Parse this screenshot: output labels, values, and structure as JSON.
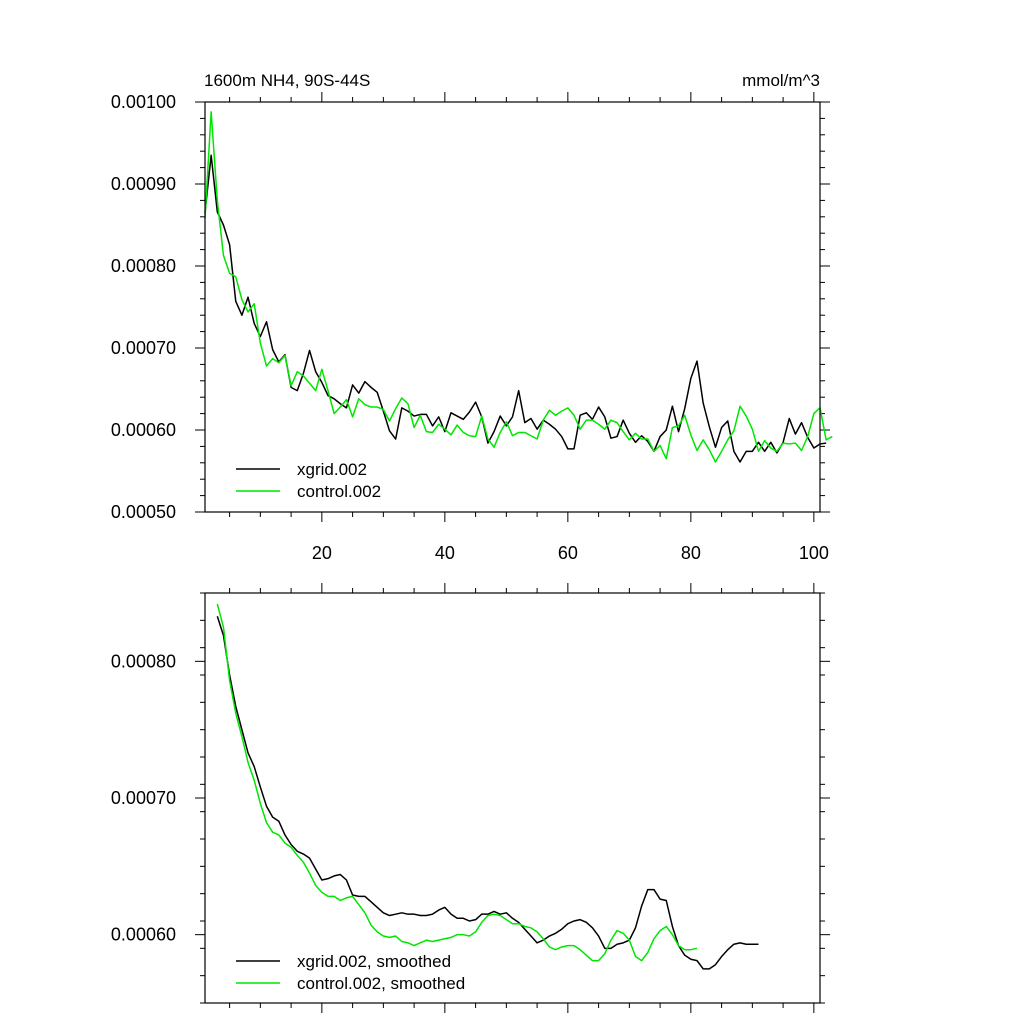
{
  "chart_data": [
    {
      "type": "line",
      "title_left": "1600m NH4, 90S-44S",
      "title_right": "mmol/m^3",
      "xlim": [
        1,
        101
      ],
      "ylim": [
        0.0005,
        0.001
      ],
      "x_ticks": [
        20,
        40,
        60,
        80,
        100
      ],
      "x_tick_labels": [
        "20",
        "40",
        "60",
        "80",
        "100"
      ],
      "y_ticks": [
        0.0005,
        0.0006,
        0.0007,
        0.0008,
        0.0009,
        0.001
      ],
      "y_tick_labels": [
        "0.00050",
        "0.00060",
        "0.00070",
        "0.00080",
        "0.00090",
        "0.00100"
      ],
      "legend_position": "bottom-left",
      "grid": false,
      "series": [
        {
          "name": "xgrid.002",
          "color": "#000000",
          "x_start": 1,
          "values": [
            0.000865,
            0.000935,
            0.000866,
            0.00085,
            0.000826,
            0.000757,
            0.00074,
            0.000762,
            0.00073,
            0.000714,
            0.000732,
            0.000698,
            0.000683,
            0.000692,
            0.000652,
            0.000648,
            0.000669,
            0.000697,
            0.000671,
            0.000658,
            0.000642,
            0.000638,
            0.000632,
            0.000627,
            0.000655,
            0.000645,
            0.000659,
            0.000652,
            0.000646,
            0.000623,
            0.000599,
            0.000589,
            0.000627,
            0.000623,
            0.000617,
            0.000619,
            0.000619,
            0.000605,
            0.000616,
            0.000598,
            0.000621,
            0.000617,
            0.000613,
            0.000622,
            0.000634,
            0.000616,
            0.000584,
            0.000598,
            0.000617,
            0.000605,
            0.000616,
            0.000648,
            0.000609,
            0.000614,
            0.000601,
            0.000612,
            0.000607,
            0.000601,
            0.000592,
            0.000577,
            0.000577,
            0.000618,
            0.000621,
            0.000613,
            0.000628,
            0.000616,
            0.00059,
            0.000592,
            0.000612,
            0.000596,
            0.000585,
            0.000593,
            0.000586,
            0.000574,
            0.000592,
            0.0006,
            0.000629,
            0.000598,
            0.000626,
            0.000663,
            0.000684,
            0.000633,
            0.000604,
            0.000579,
            0.000603,
            0.000611,
            0.000574,
            0.000561,
            0.000574,
            0.000574,
            0.000585,
            0.000574,
            0.000585,
            0.000572,
            0.000585,
            0.000614,
            0.000595,
            0.000609,
            0.000591,
            0.000578,
            0.000583,
            0.000584
          ]
        },
        {
          "name": "control.002",
          "color": "#00e600",
          "x_start": 1,
          "values": [
            0.000858,
            0.000988,
            0.00088,
            0.000813,
            0.000791,
            0.000787,
            0.000759,
            0.000744,
            0.000754,
            0.000706,
            0.000678,
            0.000687,
            0.000682,
            0.000691,
            0.000654,
            0.000671,
            0.000666,
            0.000657,
            0.000648,
            0.000674,
            0.000648,
            0.00062,
            0.000628,
            0.000637,
            0.000616,
            0.000638,
            0.000631,
            0.000628,
            0.000628,
            0.000625,
            0.000611,
            0.000626,
            0.000639,
            0.000632,
            0.000603,
            0.000618,
            0.000598,
            0.000597,
            0.000607,
            0.000601,
            0.000594,
            0.000606,
            0.000597,
            0.000593,
            0.000592,
            0.000617,
            0.000589,
            0.000579,
            0.000597,
            0.00061,
            0.000593,
            0.000597,
            0.000597,
            0.000593,
            0.000589,
            0.000612,
            0.000624,
            0.000618,
            0.000623,
            0.000627,
            0.000618,
            0.000601,
            0.000612,
            0.000612,
            0.000607,
            0.000601,
            0.000612,
            0.000609,
            0.000598,
            0.000588,
            0.000596,
            0.000589,
            0.000589,
            0.000574,
            0.000581,
            0.000565,
            0.000603,
            0.000605,
            0.000618,
            0.000594,
            0.000575,
            0.000588,
            0.000576,
            0.000561,
            0.000574,
            0.000588,
            0.000599,
            0.000629,
            0.000617,
            0.000601,
            0.000574,
            0.000587,
            0.000578,
            0.000574,
            0.000584,
            0.000583,
            0.000584,
            0.000575,
            0.000592,
            0.00062,
            0.000627,
            0.000588,
            0.000592
          ]
        }
      ]
    },
    {
      "type": "line",
      "xlim": [
        1,
        101
      ],
      "ylim": [
        0.00055,
        0.00085
      ],
      "x_ticks": [
        20,
        40,
        60,
        80,
        100
      ],
      "y_ticks": [
        0.0006,
        0.0007,
        0.0008
      ],
      "y_tick_labels": [
        "0.00060",
        "0.00070",
        "0.00080"
      ],
      "legend_position": "bottom-left",
      "grid": false,
      "series": [
        {
          "name": "xgrid.002, smoothed",
          "color": "#000000",
          "x_start": 3,
          "values": [
            0.000833,
            0.000819,
            0.00079,
            0.000767,
            0.00075,
            0.000733,
            0.000723,
            0.000708,
            0.000694,
            0.000686,
            0.000683,
            0.000673,
            0.000666,
            0.000661,
            0.000659,
            0.000656,
            0.000648,
            0.00064,
            0.000641,
            0.000643,
            0.000644,
            0.00064,
            0.000629,
            0.000628,
            0.000628,
            0.000624,
            0.00062,
            0.000616,
            0.000614,
            0.000615,
            0.000616,
            0.000615,
            0.000615,
            0.000614,
            0.000614,
            0.000615,
            0.000618,
            0.00062,
            0.000615,
            0.000612,
            0.000612,
            0.00061,
            0.000611,
            0.000615,
            0.000615,
            0.000617,
            0.000615,
            0.000616,
            0.000612,
            0.000609,
            0.000604,
            0.000599,
            0.000594,
            0.000596,
            0.000599,
            0.000601,
            0.000604,
            0.000608,
            0.00061,
            0.000611,
            0.000609,
            0.000605,
            0.000599,
            0.00059,
            0.00059,
            0.000593,
            0.000594,
            0.000596,
            0.000605,
            0.000621,
            0.000633,
            0.000633,
            0.000626,
            0.000625,
            0.000606,
            0.000592,
            0.000585,
            0.000582,
            0.000581,
            0.000575,
            0.000575,
            0.000578,
            0.000584,
            0.000589,
            0.000593,
            0.000594,
            0.000593,
            0.000593,
            0.000593
          ]
        },
        {
          "name": "control.002, smoothed",
          "color": "#00e600",
          "x_start": 3,
          "values": [
            0.000842,
            0.000825,
            0.000786,
            0.000762,
            0.000745,
            0.000726,
            0.000713,
            0.000696,
            0.000682,
            0.000675,
            0.000673,
            0.000667,
            0.000664,
            0.000658,
            0.000653,
            0.000645,
            0.000636,
            0.000631,
            0.000628,
            0.000628,
            0.000625,
            0.000627,
            0.000628,
            0.000622,
            0.000616,
            0.000607,
            0.000602,
            0.000599,
            0.000598,
            0.000599,
            0.000595,
            0.000594,
            0.000592,
            0.000594,
            0.000596,
            0.000595,
            0.000596,
            0.000597,
            0.000598,
            0.0006,
            0.0006,
            0.000599,
            0.000602,
            0.000609,
            0.000614,
            0.000615,
            0.000614,
            0.000611,
            0.000608,
            0.000608,
            0.000606,
            0.000605,
            0.000602,
            0.000597,
            0.000591,
            0.000589,
            0.000591,
            0.000592,
            0.000592,
            0.000589,
            0.000585,
            0.000581,
            0.000581,
            0.000586,
            0.000596,
            0.000603,
            0.000601,
            0.000596,
            0.000584,
            0.000581,
            0.000587,
            0.000597,
            0.000603,
            0.000606,
            0.0006,
            0.000592,
            0.000589,
            0.000589,
            0.00059
          ]
        }
      ]
    }
  ]
}
